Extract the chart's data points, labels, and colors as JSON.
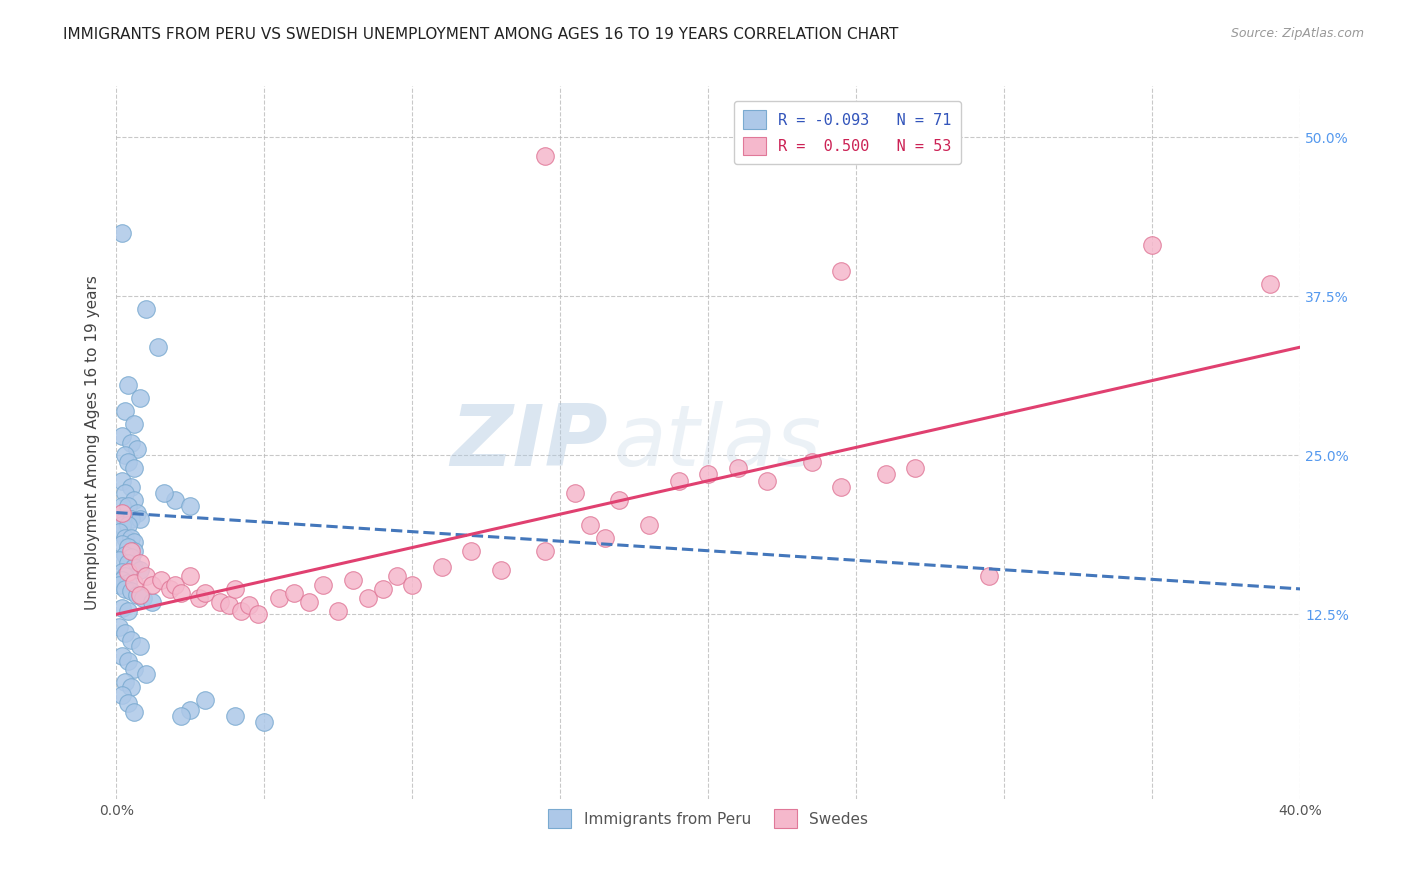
{
  "title": "IMMIGRANTS FROM PERU VS SWEDISH UNEMPLOYMENT AMONG AGES 16 TO 19 YEARS CORRELATION CHART",
  "source": "Source: ZipAtlas.com",
  "ylabel": "Unemployment Among Ages 16 to 19 years",
  "right_yticklabels": [
    "12.5%",
    "25.0%",
    "37.5%",
    "50.0%"
  ],
  "right_yticks": [
    0.125,
    0.25,
    0.375,
    0.5
  ],
  "xmin": 0.0,
  "xmax": 0.4,
  "ymin": -0.02,
  "ymax": 0.54,
  "blue_R": -0.093,
  "blue_N": 71,
  "pink_R": 0.5,
  "pink_N": 53,
  "blue_color": "#adc8e8",
  "blue_edge": "#7aaad0",
  "pink_color": "#f5b8cc",
  "pink_edge": "#e07898",
  "blue_line_color": "#4477bb",
  "pink_line_color": "#e04070",
  "blue_trend_start_y": 0.205,
  "blue_trend_end_y": 0.145,
  "pink_trend_start_y": 0.125,
  "pink_trend_end_y": 0.335,
  "blue_scatter": [
    [
      0.002,
      0.425
    ],
    [
      0.01,
      0.365
    ],
    [
      0.014,
      0.335
    ],
    [
      0.004,
      0.305
    ],
    [
      0.008,
      0.295
    ],
    [
      0.003,
      0.285
    ],
    [
      0.006,
      0.275
    ],
    [
      0.002,
      0.265
    ],
    [
      0.005,
      0.26
    ],
    [
      0.007,
      0.255
    ],
    [
      0.003,
      0.25
    ],
    [
      0.004,
      0.245
    ],
    [
      0.006,
      0.24
    ],
    [
      0.002,
      0.23
    ],
    [
      0.005,
      0.225
    ],
    [
      0.003,
      0.22
    ],
    [
      0.006,
      0.215
    ],
    [
      0.002,
      0.21
    ],
    [
      0.004,
      0.21
    ],
    [
      0.007,
      0.205
    ],
    [
      0.003,
      0.2
    ],
    [
      0.005,
      0.2
    ],
    [
      0.008,
      0.2
    ],
    [
      0.002,
      0.195
    ],
    [
      0.004,
      0.195
    ],
    [
      0.001,
      0.19
    ],
    [
      0.003,
      0.185
    ],
    [
      0.005,
      0.185
    ],
    [
      0.006,
      0.182
    ],
    [
      0.002,
      0.18
    ],
    [
      0.004,
      0.178
    ],
    [
      0.006,
      0.175
    ],
    [
      0.003,
      0.172
    ],
    [
      0.005,
      0.17
    ],
    [
      0.001,
      0.168
    ],
    [
      0.004,
      0.165
    ],
    [
      0.006,
      0.162
    ],
    [
      0.008,
      0.16
    ],
    [
      0.002,
      0.158
    ],
    [
      0.003,
      0.155
    ],
    [
      0.002,
      0.152
    ],
    [
      0.004,
      0.15
    ],
    [
      0.001,
      0.148
    ],
    [
      0.003,
      0.145
    ],
    [
      0.005,
      0.143
    ],
    [
      0.007,
      0.14
    ],
    [
      0.009,
      0.138
    ],
    [
      0.012,
      0.135
    ],
    [
      0.002,
      0.13
    ],
    [
      0.004,
      0.128
    ],
    [
      0.001,
      0.115
    ],
    [
      0.003,
      0.11
    ],
    [
      0.005,
      0.105
    ],
    [
      0.008,
      0.1
    ],
    [
      0.002,
      0.092
    ],
    [
      0.004,
      0.088
    ],
    [
      0.006,
      0.082
    ],
    [
      0.01,
      0.078
    ],
    [
      0.003,
      0.072
    ],
    [
      0.005,
      0.068
    ],
    [
      0.002,
      0.062
    ],
    [
      0.004,
      0.055
    ],
    [
      0.006,
      0.048
    ],
    [
      0.02,
      0.215
    ],
    [
      0.025,
      0.21
    ],
    [
      0.016,
      0.22
    ],
    [
      0.03,
      0.058
    ],
    [
      0.04,
      0.045
    ],
    [
      0.05,
      0.04
    ],
    [
      0.025,
      0.05
    ],
    [
      0.022,
      0.045
    ]
  ],
  "pink_scatter": [
    [
      0.002,
      0.205
    ],
    [
      0.005,
      0.175
    ],
    [
      0.004,
      0.158
    ],
    [
      0.008,
      0.165
    ],
    [
      0.006,
      0.15
    ],
    [
      0.01,
      0.155
    ],
    [
      0.012,
      0.148
    ],
    [
      0.008,
      0.14
    ],
    [
      0.015,
      0.152
    ],
    [
      0.018,
      0.145
    ],
    [
      0.02,
      0.148
    ],
    [
      0.022,
      0.142
    ],
    [
      0.025,
      0.155
    ],
    [
      0.028,
      0.138
    ],
    [
      0.03,
      0.142
    ],
    [
      0.035,
      0.135
    ],
    [
      0.038,
      0.132
    ],
    [
      0.04,
      0.145
    ],
    [
      0.042,
      0.128
    ],
    [
      0.045,
      0.132
    ],
    [
      0.048,
      0.125
    ],
    [
      0.055,
      0.138
    ],
    [
      0.06,
      0.142
    ],
    [
      0.065,
      0.135
    ],
    [
      0.07,
      0.148
    ],
    [
      0.075,
      0.128
    ],
    [
      0.08,
      0.152
    ],
    [
      0.085,
      0.138
    ],
    [
      0.09,
      0.145
    ],
    [
      0.095,
      0.155
    ],
    [
      0.1,
      0.148
    ],
    [
      0.11,
      0.162
    ],
    [
      0.12,
      0.175
    ],
    [
      0.13,
      0.16
    ],
    [
      0.145,
      0.175
    ],
    [
      0.155,
      0.22
    ],
    [
      0.16,
      0.195
    ],
    [
      0.165,
      0.185
    ],
    [
      0.17,
      0.215
    ],
    [
      0.18,
      0.195
    ],
    [
      0.19,
      0.23
    ],
    [
      0.2,
      0.235
    ],
    [
      0.21,
      0.24
    ],
    [
      0.22,
      0.23
    ],
    [
      0.235,
      0.245
    ],
    [
      0.245,
      0.225
    ],
    [
      0.26,
      0.235
    ],
    [
      0.27,
      0.24
    ],
    [
      0.145,
      0.485
    ],
    [
      0.245,
      0.395
    ],
    [
      0.35,
      0.415
    ],
    [
      0.39,
      0.385
    ],
    [
      0.295,
      0.155
    ]
  ],
  "watermark_zip": "ZIP",
  "watermark_atlas": "atlas",
  "legend_items": [
    "Immigrants from Peru",
    "Swedes"
  ],
  "title_fontsize": 11,
  "axis_label_fontsize": 11,
  "tick_fontsize": 10,
  "legend_fontsize": 11
}
